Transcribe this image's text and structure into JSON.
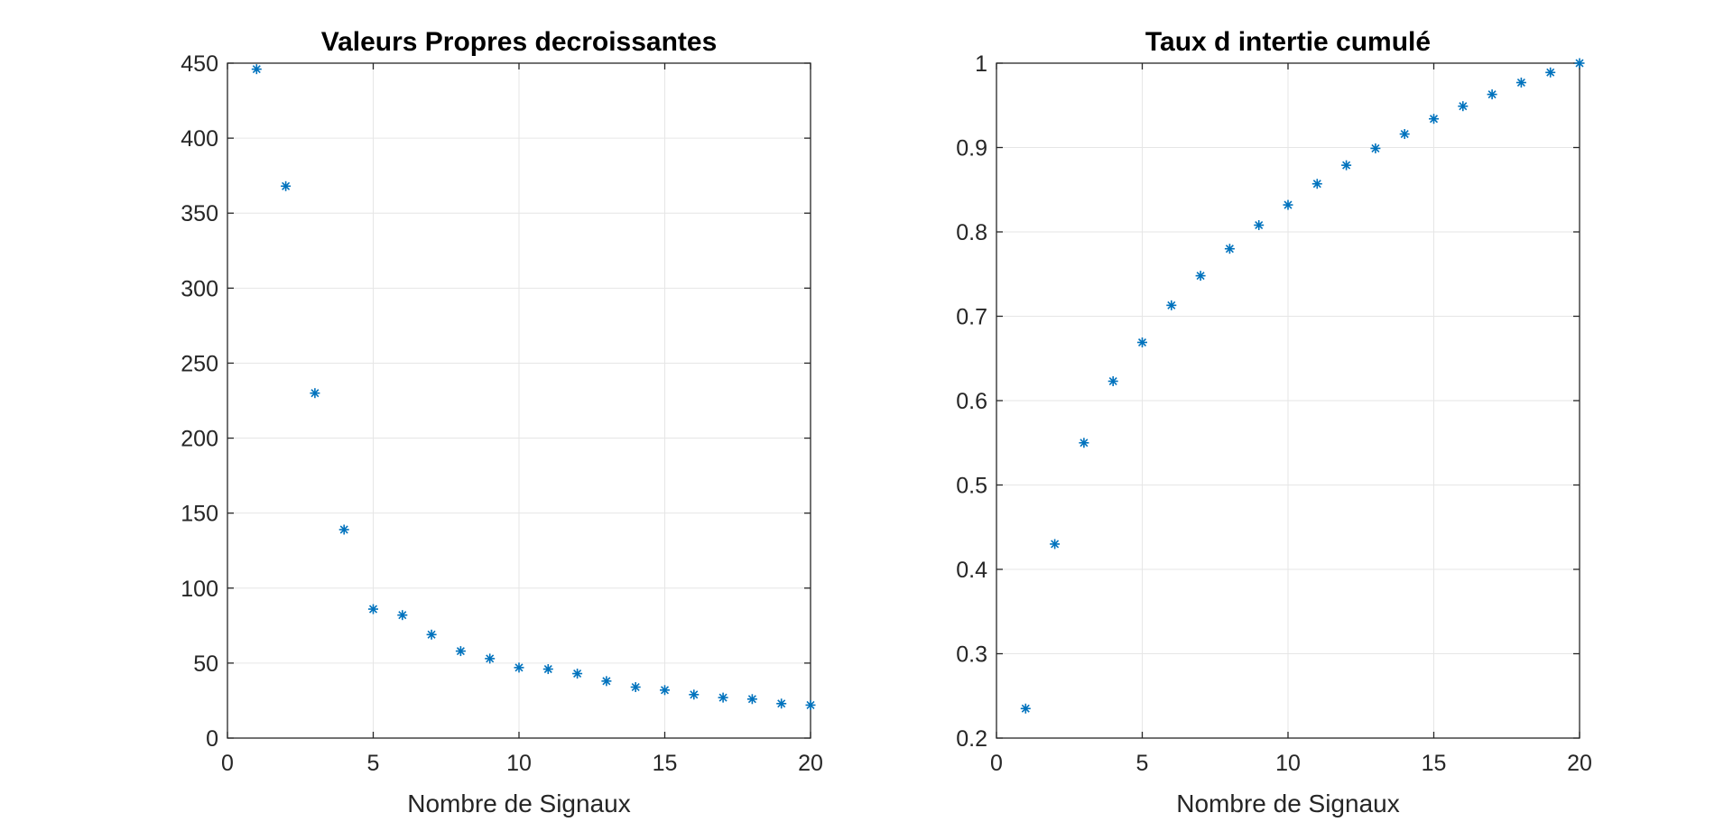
{
  "colors": {
    "marker": "#0072bd",
    "axis": "#262626",
    "grid": "#e6e6e6",
    "title": "#000000",
    "background": "#ffffff"
  },
  "chart_data": [
    {
      "type": "scatter",
      "title": "Valeurs Propres decroissantes",
      "xlabel": "Nombre de Signaux",
      "ylabel": "",
      "xlim": [
        0,
        20
      ],
      "ylim": [
        0,
        450
      ],
      "xticks": [
        0,
        5,
        10,
        15,
        20
      ],
      "yticks": [
        0,
        50,
        100,
        150,
        200,
        250,
        300,
        350,
        400,
        450
      ],
      "grid": true,
      "marker": "asterisk",
      "series": [
        {
          "x": [
            1,
            2,
            3,
            4,
            5,
            6,
            7,
            8,
            9,
            10,
            11,
            12,
            13,
            14,
            15,
            16,
            17,
            18,
            19,
            20
          ],
          "y": [
            446,
            368,
            230,
            139,
            86,
            82,
            69,
            58,
            53,
            47,
            46,
            43,
            38,
            34,
            32,
            29,
            27,
            26,
            23,
            22
          ]
        }
      ]
    },
    {
      "type": "scatter",
      "title": "Taux d intertie cumulé",
      "xlabel": "Nombre de Signaux",
      "ylabel": "",
      "xlim": [
        0,
        20
      ],
      "ylim": [
        0.2,
        1
      ],
      "xticks": [
        0,
        5,
        10,
        15,
        20
      ],
      "yticks": [
        0.2,
        0.3,
        0.4,
        0.5,
        0.6,
        0.7,
        0.8,
        0.9,
        1
      ],
      "grid": true,
      "marker": "asterisk",
      "series": [
        {
          "x": [
            1,
            2,
            3,
            4,
            5,
            6,
            7,
            8,
            9,
            10,
            11,
            12,
            13,
            14,
            15,
            16,
            17,
            18,
            19,
            20
          ],
          "y": [
            0.235,
            0.43,
            0.55,
            0.623,
            0.669,
            0.713,
            0.748,
            0.78,
            0.808,
            0.832,
            0.857,
            0.879,
            0.899,
            0.916,
            0.934,
            0.949,
            0.963,
            0.977,
            0.989,
            1.0
          ]
        }
      ]
    }
  ]
}
